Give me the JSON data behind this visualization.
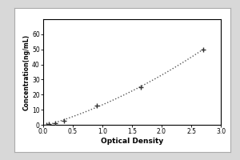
{
  "xlabel": "Optical Density",
  "ylabel": "Concentration(ng/mL)",
  "x_data": [
    0.057,
    0.1,
    0.2,
    0.35,
    0.9,
    1.65,
    2.7
  ],
  "y_data": [
    0.0,
    0.5,
    1.0,
    2.5,
    12.5,
    25.0,
    50.0
  ],
  "xlim": [
    0,
    3
  ],
  "ylim": [
    0,
    70
  ],
  "yticks": [
    0,
    10,
    20,
    30,
    40,
    50,
    60
  ],
  "xticks": [
    0,
    0.5,
    1.0,
    1.5,
    2.0,
    2.5,
    3.0
  ],
  "line_color": "#555555",
  "marker_color": "#333333",
  "bg_color": "#f0f0f0",
  "plot_bg": "#ffffff",
  "border_color": "#000000",
  "outer_rect_color": "#000000"
}
